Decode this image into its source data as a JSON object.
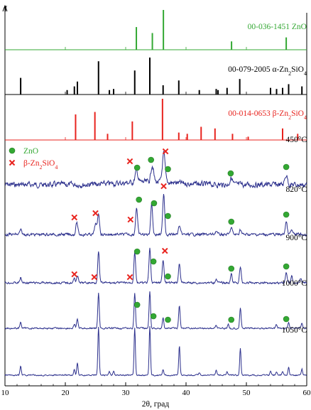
{
  "chart_data": {
    "type": "line",
    "y_axis_label": "I",
    "x_axis_label": "2θ, град",
    "xlim": [
      10,
      60
    ],
    "x_ticks": [
      10,
      20,
      30,
      40,
      50,
      60
    ],
    "colors": {
      "zno": "#33a833",
      "alpha": "#000000",
      "beta": "#e8231e",
      "xrd": "#2b2f8c",
      "marker_x": "#e8231e"
    },
    "references": [
      {
        "name": "00-036-1451 ZnO",
        "label_parts": [
          "00-036-1451 ZnO"
        ],
        "color": "#33a833",
        "peaks": [
          [
            31.77,
            0.57
          ],
          [
            34.42,
            0.42
          ],
          [
            36.25,
            1.0
          ],
          [
            47.54,
            0.21
          ],
          [
            56.6,
            0.31
          ]
        ]
      },
      {
        "name": "00-079-2005 α-Zn2SiO4",
        "label_parts": [
          "00-079-2005 α-Zn",
          "2",
          "SiO",
          "4"
        ],
        "color": "#000000",
        "peaks": [
          [
            12.6,
            0.45
          ],
          [
            20.3,
            0.12
          ],
          [
            21.5,
            0.22
          ],
          [
            22.0,
            0.35
          ],
          [
            25.5,
            0.9
          ],
          [
            27.3,
            0.12
          ],
          [
            28.0,
            0.15
          ],
          [
            31.5,
            0.65
          ],
          [
            34.0,
            1.0
          ],
          [
            36.2,
            0.25
          ],
          [
            38.8,
            0.38
          ],
          [
            42.2,
            0.12
          ],
          [
            45.0,
            0.15
          ],
          [
            45.3,
            0.12
          ],
          [
            46.8,
            0.18
          ],
          [
            48.9,
            0.42
          ],
          [
            54.0,
            0.18
          ],
          [
            55.0,
            0.15
          ],
          [
            56.0,
            0.18
          ],
          [
            57.0,
            0.28
          ],
          [
            59.2,
            0.22
          ]
        ]
      },
      {
        "name": "00-014-0653 β-Zn2SiO4",
        "label_parts": [
          "00-014-0653 β-Zn",
          "2",
          "SiO",
          "4"
        ],
        "color": "#e8231e",
        "peaks": [
          [
            21.7,
            0.62
          ],
          [
            24.9,
            0.68
          ],
          [
            27.0,
            0.15
          ],
          [
            31.1,
            0.45
          ],
          [
            36.1,
            1.0
          ],
          [
            38.8,
            0.18
          ],
          [
            40.2,
            0.15
          ],
          [
            42.5,
            0.32
          ],
          [
            44.8,
            0.28
          ],
          [
            47.7,
            0.15
          ],
          [
            50.3,
            0.08
          ],
          [
            56.0,
            0.28
          ],
          [
            58.5,
            0.15
          ]
        ]
      }
    ],
    "patterns": [
      {
        "temperature": "450°C",
        "peaks": [
          [
            31.8,
            16
          ],
          [
            34.4,
            24
          ],
          [
            36.3,
            40
          ],
          [
            47.5,
            10
          ],
          [
            56.6,
            14
          ]
        ],
        "markers": [
          {
            "type": "x",
            "x": 30.7,
            "h": 33
          },
          {
            "type": "o",
            "x": 31.9,
            "h": 24
          },
          {
            "type": "o",
            "x": 34.2,
            "h": 35
          },
          {
            "type": "x",
            "x": 36.6,
            "h": 47
          },
          {
            "type": "o",
            "x": 37.0,
            "h": 22
          },
          {
            "type": "o",
            "x": 47.4,
            "h": 16
          },
          {
            "type": "o",
            "x": 56.6,
            "h": 25
          }
        ]
      },
      {
        "temperature": "820°C",
        "peaks": [
          [
            12.6,
            6
          ],
          [
            21.9,
            17
          ],
          [
            25.5,
            30
          ],
          [
            31.8,
            38
          ],
          [
            34.3,
            44
          ],
          [
            36.3,
            58
          ],
          [
            38.9,
            12
          ],
          [
            47.5,
            10
          ],
          [
            56.6,
            18
          ],
          [
            49.0,
            7
          ],
          [
            57.5,
            6
          ],
          [
            45.0,
            5
          ],
          [
            25.0,
            15
          ]
        ],
        "markers": [
          {
            "type": "x",
            "x": 21.5,
            "h": 24
          },
          {
            "type": "x",
            "x": 25.0,
            "h": 30
          },
          {
            "type": "x",
            "x": 30.8,
            "h": 21
          },
          {
            "type": "o",
            "x": 32.2,
            "h": 49
          },
          {
            "type": "o",
            "x": 34.7,
            "h": 44
          },
          {
            "type": "x",
            "x": 36.3,
            "h": 68
          },
          {
            "type": "o",
            "x": 37.0,
            "h": 26
          },
          {
            "type": "o",
            "x": 47.5,
            "h": 18
          },
          {
            "type": "o",
            "x": 56.6,
            "h": 28
          }
        ]
      },
      {
        "temperature": "900°C",
        "peaks": [
          [
            12.6,
            7
          ],
          [
            21.5,
            6
          ],
          [
            22.0,
            10
          ],
          [
            25.5,
            44
          ],
          [
            31.5,
            44
          ],
          [
            34.0,
            48
          ],
          [
            36.2,
            33
          ],
          [
            38.9,
            28
          ],
          [
            47.5,
            12
          ],
          [
            49.0,
            22
          ],
          [
            56.6,
            14
          ],
          [
            57.5,
            9
          ],
          [
            45.0,
            6
          ],
          [
            59.0,
            6
          ]
        ],
        "markers": [
          {
            "type": "x",
            "x": 21.5,
            "h": 12
          },
          {
            "type": "x",
            "x": 24.8,
            "h": 8
          },
          {
            "type": "x",
            "x": 30.7,
            "h": 8
          },
          {
            "type": "o",
            "x": 31.9,
            "h": 44
          },
          {
            "type": "o",
            "x": 34.6,
            "h": 30
          },
          {
            "type": "x",
            "x": 36.5,
            "h": 45
          },
          {
            "type": "o",
            "x": 37.0,
            "h": 9
          },
          {
            "type": "o",
            "x": 47.5,
            "h": 20
          },
          {
            "type": "o",
            "x": 56.6,
            "h": 23
          }
        ]
      },
      {
        "temperature": "1000°C",
        "peaks": [
          [
            12.6,
            9
          ],
          [
            21.5,
            6
          ],
          [
            22.0,
            13
          ],
          [
            25.5,
            50
          ],
          [
            31.5,
            50
          ],
          [
            34.0,
            52
          ],
          [
            36.2,
            14
          ],
          [
            38.9,
            32
          ],
          [
            45.0,
            5
          ],
          [
            47.0,
            6
          ],
          [
            49.0,
            29
          ],
          [
            55.0,
            5
          ],
          [
            57.0,
            8
          ],
          [
            59.2,
            8
          ]
        ],
        "markers": [
          {
            "type": "o",
            "x": 31.9,
            "h": 33
          },
          {
            "type": "o",
            "x": 34.6,
            "h": 17
          },
          {
            "type": "o",
            "x": 37.0,
            "h": 12
          },
          {
            "type": "o",
            "x": 47.5,
            "h": 12
          },
          {
            "type": "o",
            "x": 56.6,
            "h": 13
          }
        ]
      },
      {
        "temperature": "1050°C",
        "peaks": [
          [
            12.6,
            13
          ],
          [
            21.5,
            8
          ],
          [
            22.0,
            18
          ],
          [
            25.5,
            68
          ],
          [
            27.3,
            5
          ],
          [
            28.0,
            5
          ],
          [
            31.5,
            67
          ],
          [
            34.0,
            68
          ],
          [
            36.2,
            8
          ],
          [
            38.9,
            42
          ],
          [
            42.2,
            4
          ],
          [
            45.0,
            7
          ],
          [
            46.8,
            6
          ],
          [
            49.0,
            38
          ],
          [
            54.0,
            6
          ],
          [
            55.0,
            5
          ],
          [
            56.0,
            6
          ],
          [
            57.0,
            11
          ],
          [
            59.2,
            9
          ]
        ],
        "markers": []
      }
    ],
    "legend": [
      {
        "type": "o",
        "label_parts": [
          "ZnO"
        ]
      },
      {
        "type": "x",
        "label_parts": [
          "β-Zn",
          "2",
          "SiO",
          "4"
        ]
      }
    ]
  }
}
